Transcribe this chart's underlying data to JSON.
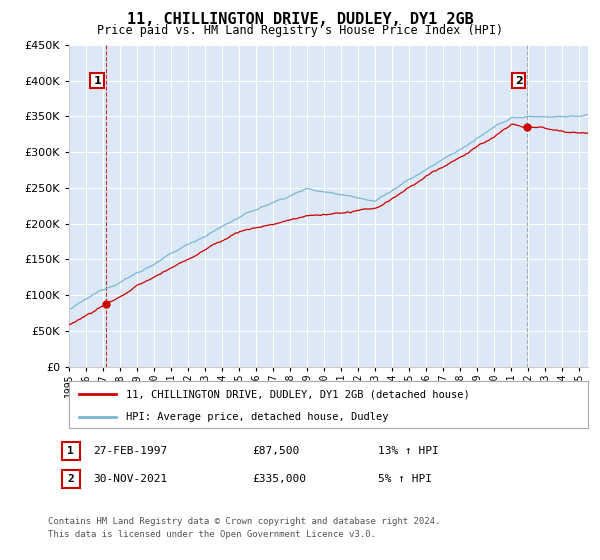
{
  "title": "11, CHILLINGTON DRIVE, DUDLEY, DY1 2GB",
  "subtitle": "Price paid vs. HM Land Registry's House Price Index (HPI)",
  "fig_bg_color": "#ffffff",
  "plot_bg_color": "#dce8f5",
  "grid_color": "#ffffff",
  "ylim": [
    0,
    450000
  ],
  "yticks": [
    0,
    50000,
    100000,
    150000,
    200000,
    250000,
    300000,
    350000,
    400000,
    450000
  ],
  "xlim_start": 1995,
  "xlim_end": 2025.5,
  "sale1_x": 1997.15,
  "sale1_y": 87500,
  "sale2_x": 2021.92,
  "sale2_y": 335000,
  "sale1_date": "27-FEB-1997",
  "sale1_price": "£87,500",
  "sale1_hpi": "13% ↑ HPI",
  "sale2_date": "30-NOV-2021",
  "sale2_price": "£335,000",
  "sale2_hpi": "5% ↑ HPI",
  "legend_line1": "11, CHILLINGTON DRIVE, DUDLEY, DY1 2GB (detached house)",
  "legend_line2": "HPI: Average price, detached house, Dudley",
  "footnote_line1": "Contains HM Land Registry data © Crown copyright and database right 2024.",
  "footnote_line2": "This data is licensed under the Open Government Licence v3.0.",
  "line_color_red": "#cc0000",
  "line_color_blue": "#7ab8d4",
  "dashed_color_red": "#cc0000",
  "dashed_color_gray": "#999999",
  "marker_color": "#cc0000",
  "label_box_color": "#cc0000"
}
